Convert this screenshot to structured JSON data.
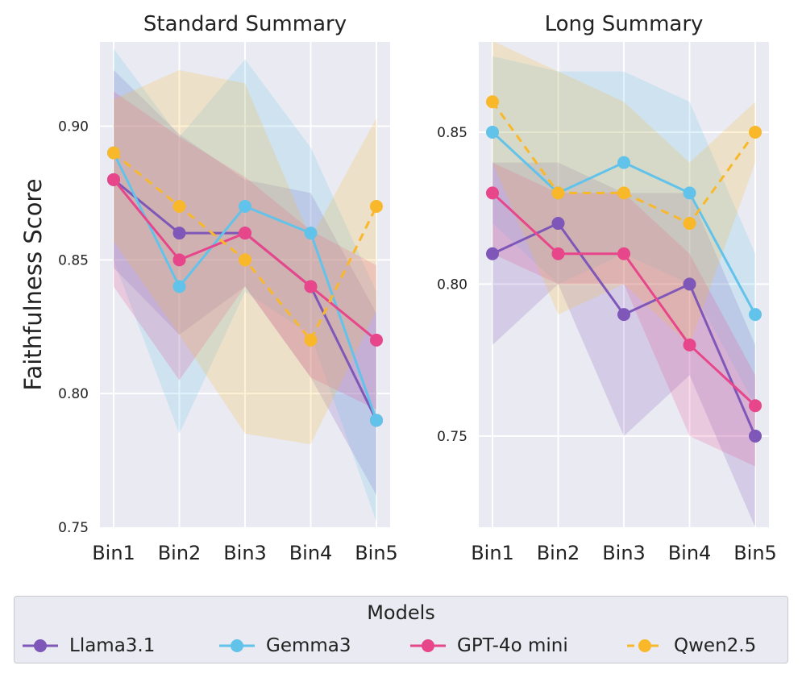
{
  "chart_data": [
    {
      "type": "line",
      "title": "Standard Summary",
      "ylabel": "Faithfulness Score",
      "xlabel": "",
      "categories": [
        "Bin1",
        "Bin2",
        "Bin3",
        "Bin4",
        "Bin5"
      ],
      "ylim": [
        0.75,
        0.9315
      ],
      "yticks": [
        0.75,
        0.8,
        0.85,
        0.9
      ],
      "ytick_labels": [
        "0.75",
        "0.80",
        "0.85",
        "0.90"
      ],
      "grid": true,
      "series": [
        {
          "name": "Llama3.1",
          "color": "#7e57b8",
          "dash": false,
          "values": [
            0.88,
            0.86,
            0.86,
            0.84,
            0.79
          ],
          "lower": [
            0.847,
            0.822,
            0.84,
            0.806,
            0.762
          ],
          "upper": [
            0.921,
            0.897,
            0.88,
            0.875,
            0.83
          ]
        },
        {
          "name": "Gemma3",
          "color": "#62c3ea",
          "dash": false,
          "values": [
            0.89,
            0.84,
            0.87,
            0.86,
            0.79
          ],
          "lower": [
            0.85,
            0.785,
            0.838,
            0.822,
            0.752
          ],
          "upper": [
            0.929,
            0.896,
            0.925,
            0.892,
            0.838
          ]
        },
        {
          "name": "GPT-4o mini",
          "color": "#e8468a",
          "dash": false,
          "values": [
            0.88,
            0.85,
            0.86,
            0.84,
            0.82
          ],
          "lower": [
            0.84,
            0.805,
            0.84,
            0.806,
            0.794
          ],
          "upper": [
            0.913,
            0.896,
            0.881,
            0.861,
            0.848
          ]
        },
        {
          "name": "Qwen2.5",
          "color": "#f8b82a",
          "dash": true,
          "values": [
            0.89,
            0.87,
            0.85,
            0.82,
            0.87
          ],
          "lower": [
            0.857,
            0.822,
            0.785,
            0.781,
            0.831
          ],
          "upper": [
            0.91,
            0.921,
            0.916,
            0.858,
            0.903
          ]
        }
      ]
    },
    {
      "type": "line",
      "title": "Long Summary",
      "ylabel": "",
      "xlabel": "",
      "categories": [
        "Bin1",
        "Bin2",
        "Bin3",
        "Bin4",
        "Bin5"
      ],
      "ylim": [
        0.72,
        0.8797
      ],
      "yticks": [
        0.75,
        0.8,
        0.85
      ],
      "ytick_labels": [
        "0.75",
        "0.80",
        "0.85"
      ],
      "grid": true,
      "series": [
        {
          "name": "Llama3.1",
          "color": "#7e57b8",
          "dash": false,
          "values": [
            0.81,
            0.82,
            0.79,
            0.8,
            0.75
          ],
          "lower": [
            0.78,
            0.8,
            0.75,
            0.77,
            0.72
          ],
          "upper": [
            0.84,
            0.84,
            0.83,
            0.83,
            0.78
          ]
        },
        {
          "name": "Gemma3",
          "color": "#62c3ea",
          "dash": false,
          "values": [
            0.85,
            0.83,
            0.84,
            0.83,
            0.79
          ],
          "lower": [
            0.82,
            0.8,
            0.81,
            0.8,
            0.76
          ],
          "upper": [
            0.875,
            0.87,
            0.87,
            0.86,
            0.81
          ]
        },
        {
          "name": "GPT-4o mini",
          "color": "#e8468a",
          "dash": false,
          "values": [
            0.83,
            0.81,
            0.81,
            0.78,
            0.76
          ],
          "lower": [
            0.81,
            0.8,
            0.8,
            0.75,
            0.74
          ],
          "upper": [
            0.84,
            0.83,
            0.83,
            0.81,
            0.77
          ]
        },
        {
          "name": "Qwen2.5",
          "color": "#f8b82a",
          "dash": true,
          "values": [
            0.86,
            0.83,
            0.83,
            0.82,
            0.85
          ],
          "lower": [
            0.84,
            0.79,
            0.8,
            0.78,
            0.84
          ],
          "upper": [
            0.88,
            0.87,
            0.86,
            0.84,
            0.86
          ]
        }
      ]
    }
  ],
  "legend": {
    "title": "Models",
    "items": [
      {
        "name": "Llama3.1",
        "color": "#7e57b8",
        "dash": false
      },
      {
        "name": "Gemma3",
        "color": "#62c3ea",
        "dash": false
      },
      {
        "name": "GPT-4o mini",
        "color": "#e8468a",
        "dash": false
      },
      {
        "name": "Qwen2.5",
        "color": "#f8b82a",
        "dash": true
      }
    ]
  },
  "style": {
    "plot_bg": "#eaeaf2",
    "grid_color": "#ffffff",
    "text_color": "#222222"
  }
}
